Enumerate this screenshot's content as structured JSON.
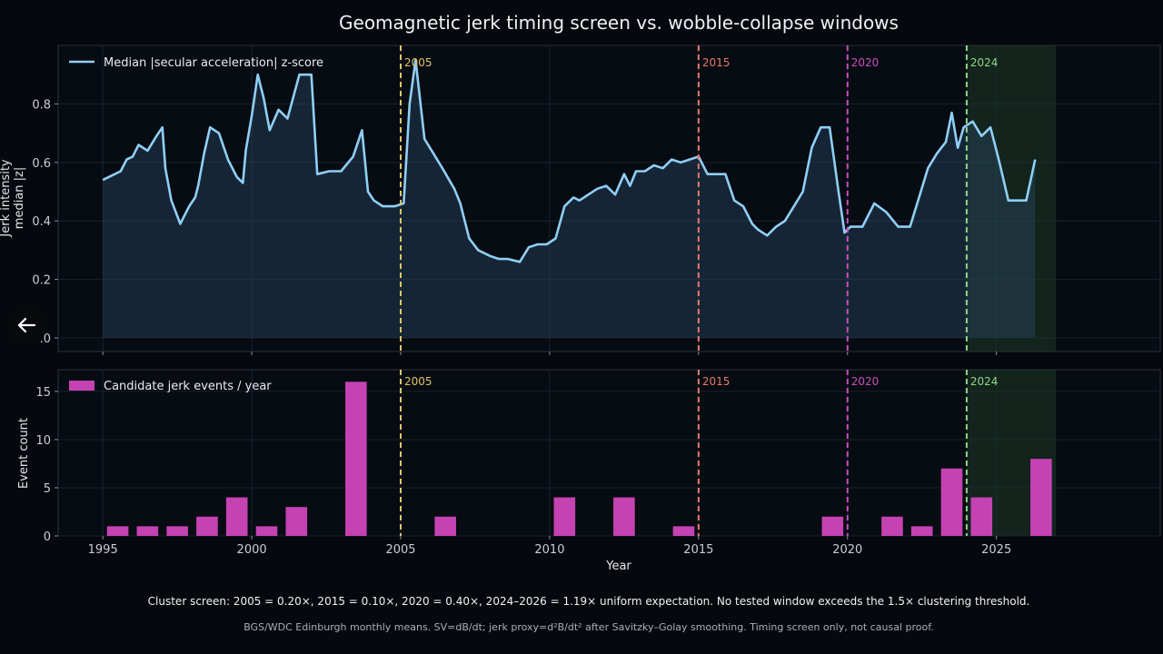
{
  "chart_data": [
    {
      "type": "area",
      "title": "Geomagnetic jerk timing screen vs. wobble-collapse windows",
      "ylabel_line1": "Jerk intensity",
      "ylabel_line2": "median |z|",
      "legend": "Median |secular acceleration| z-score",
      "xlim": [
        1993.5,
        2030.5
      ],
      "ylim": [
        0.0,
        1.0
      ],
      "yticks": [
        0.0,
        0.2,
        0.4,
        0.6,
        0.8
      ],
      "ytick_labels": [
        ".0",
        "0.2",
        "0.4",
        "0.6",
        "0.8"
      ],
      "grid": true,
      "legend_position": "top-left",
      "series": [
        {
          "x": [
            1995.0,
            1995.2,
            1995.4,
            1995.6,
            1995.8,
            1996.0,
            1996.2,
            1996.5,
            1996.8,
            1997.0,
            1997.1,
            1997.3,
            1997.6,
            1997.9,
            1998.1,
            1998.2,
            1998.4,
            1998.6,
            1998.9,
            1999.2,
            1999.5,
            1999.7,
            1999.8,
            2000.0,
            2000.2,
            2000.4,
            2000.6,
            2000.9,
            2001.2,
            2001.6,
            2002.0,
            2002.2,
            2002.6,
            2003.0,
            2003.4,
            2003.7,
            2003.9,
            2004.1,
            2004.4,
            2004.8,
            2005.1,
            2005.3,
            2005.5,
            2005.8,
            2006.1,
            2006.4,
            2006.8,
            2007.0,
            2007.3,
            2007.6,
            2008.0,
            2008.3,
            2008.6,
            2009.0,
            2009.3,
            2009.6,
            2009.9,
            2010.2,
            2010.5,
            2010.8,
            2011.0,
            2011.3,
            2011.6,
            2011.9,
            2012.2,
            2012.5,
            2012.7,
            2012.9,
            2013.2,
            2013.5,
            2013.8,
            2014.1,
            2014.4,
            2014.7,
            2015.0,
            2015.3,
            2015.6,
            2015.9,
            2016.2,
            2016.5,
            2016.8,
            2017.0,
            2017.3,
            2017.6,
            2017.9,
            2018.2,
            2018.5,
            2018.8,
            2019.1,
            2019.4,
            2019.7,
            2019.9,
            2020.1,
            2020.5,
            2020.9,
            2021.3,
            2021.7,
            2022.1,
            2022.4,
            2022.7,
            2023.0,
            2023.3,
            2023.5,
            2023.7,
            2023.9,
            2024.2,
            2024.5,
            2024.8,
            2025.1,
            2025.4,
            2025.7,
            2026.0,
            2026.3
          ],
          "values": [
            0.54,
            0.55,
            0.56,
            0.57,
            0.61,
            0.62,
            0.66,
            0.64,
            0.69,
            0.72,
            0.58,
            0.47,
            0.39,
            0.45,
            0.48,
            0.52,
            0.63,
            0.72,
            0.7,
            0.61,
            0.55,
            0.53,
            0.64,
            0.76,
            0.9,
            0.82,
            0.71,
            0.78,
            0.75,
            0.9,
            0.9,
            0.56,
            0.57,
            0.57,
            0.62,
            0.71,
            0.5,
            0.47,
            0.45,
            0.45,
            0.46,
            0.8,
            0.95,
            0.68,
            0.63,
            0.58,
            0.51,
            0.46,
            0.34,
            0.3,
            0.28,
            0.27,
            0.27,
            0.26,
            0.31,
            0.32,
            0.32,
            0.34,
            0.45,
            0.48,
            0.47,
            0.49,
            0.51,
            0.52,
            0.49,
            0.56,
            0.52,
            0.57,
            0.57,
            0.59,
            0.58,
            0.61,
            0.6,
            0.61,
            0.62,
            0.56,
            0.56,
            0.56,
            0.47,
            0.45,
            0.39,
            0.37,
            0.35,
            0.38,
            0.4,
            0.45,
            0.5,
            0.65,
            0.72,
            0.72,
            0.5,
            0.36,
            0.38,
            0.38,
            0.46,
            0.43,
            0.38,
            0.38,
            0.48,
            0.58,
            0.63,
            0.67,
            0.77,
            0.65,
            0.72,
            0.74,
            0.69,
            0.72,
            0.6,
            0.47,
            0.47,
            0.47,
            0.61
          ]
        }
      ]
    },
    {
      "type": "bar",
      "ylabel": "Event count",
      "xlabel": "Year",
      "legend": "Candidate jerk events / year",
      "xlim": [
        1993.5,
        2030.5
      ],
      "ylim": [
        0,
        16.5
      ],
      "yticks": [
        0,
        5,
        10,
        15
      ],
      "xticks": [
        1995,
        2000,
        2005,
        2010,
        2015,
        2020,
        2025
      ],
      "grid": true,
      "legend_position": "top-left",
      "series": [
        {
          "x": [
            1995.5,
            1996.5,
            1997.5,
            1998.5,
            1999.5,
            2000.5,
            2001.5,
            2003.5,
            2006.5,
            2010.5,
            2012.5,
            2014.5,
            2019.5,
            2021.5,
            2022.5,
            2023.5,
            2024.5,
            2026.5
          ],
          "values": [
            1,
            1,
            1,
            2,
            4,
            1,
            3,
            16,
            2,
            4,
            4,
            1,
            2,
            2,
            1,
            7,
            4,
            8
          ]
        }
      ]
    }
  ],
  "colors": {
    "line": "#8fcff5",
    "bars": "#c542b2",
    "m2005": "#e0c46c",
    "m2015": "#e77a6a",
    "m2020": "#c84fbd",
    "m2024": "#8dd687",
    "window": "#1c3a25"
  },
  "markers": [
    {
      "year": 2005,
      "label": "2005",
      "color": "#e0c46c"
    },
    {
      "year": 2015,
      "label": "2015",
      "color": "#e77a6a"
    },
    {
      "year": 2020,
      "label": "2020",
      "color": "#c84fbd"
    },
    {
      "year": 2024,
      "label": "2024",
      "color": "#8dd687"
    }
  ],
  "window": {
    "start": 2024,
    "end": 2027
  },
  "caption": "Cluster screen: 2005 = 0.20×, 2015 = 0.10×, 2020 = 0.40×, 2024–2026 = 1.19× uniform expectation. No tested window exceeds the 1.5× clustering threshold.",
  "source_note": "BGS/WDC Edinburgh monthly means. SV=dB/dt; jerk proxy=d²B/dt² after Savitzky–Golay smoothing. Timing screen only, not causal proof.",
  "back_icon": "arrow-left-icon"
}
